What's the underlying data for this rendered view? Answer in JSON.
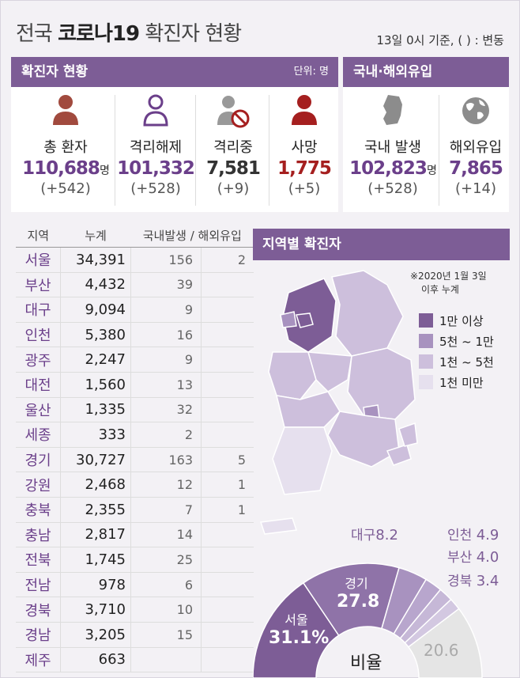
{
  "header": {
    "title_pre": "전국 ",
    "title_bold": "코로나19",
    "title_post": " 확진자 현황",
    "basis": "13일 0시 기준, ( ) : 변동"
  },
  "confirmed_panel": {
    "title": "확진자 현황",
    "unit": "단위: 명"
  },
  "import_panel": {
    "title": "국내·해외유입"
  },
  "stats": [
    {
      "label": "총 환자",
      "value": "110,688",
      "suffix": "명",
      "change": "(+542)",
      "color": "#6b3f8a",
      "icon": "person-icon"
    },
    {
      "label": "격리해제",
      "value": "101,332",
      "suffix": "",
      "change": "(+528)",
      "color": "#6b3f8a",
      "icon": "person-outline-icon"
    },
    {
      "label": "격리중",
      "value": "7,581",
      "suffix": "",
      "change": "(+9)",
      "color": "#333333",
      "icon": "person-blocked-icon"
    },
    {
      "label": "사망",
      "value": "1,775",
      "suffix": "",
      "change": "(+5)",
      "color": "#a51f1f",
      "icon": "person-dark-red-icon"
    },
    {
      "label": "국내 발생",
      "value": "102,823",
      "suffix": "명",
      "change": "(+528)",
      "color": "#6b3f8a",
      "icon": "korea-map-icon"
    },
    {
      "label": "해외유입",
      "value": "7,865",
      "suffix": "",
      "change": "(+14)",
      "color": "#6b3f8a",
      "icon": "globe-icon"
    }
  ],
  "region_table": {
    "headers": [
      "지역",
      "누계",
      "국내발생 / 해외유입"
    ],
    "rows": [
      {
        "region": "서울",
        "total": "34,391",
        "domestic": "156",
        "overseas": "2"
      },
      {
        "region": "부산",
        "total": "4,432",
        "domestic": "39",
        "overseas": ""
      },
      {
        "region": "대구",
        "total": "9,094",
        "domestic": "9",
        "overseas": ""
      },
      {
        "region": "인천",
        "total": "5,380",
        "domestic": "16",
        "overseas": ""
      },
      {
        "region": "광주",
        "total": "2,247",
        "domestic": "9",
        "overseas": ""
      },
      {
        "region": "대전",
        "total": "1,560",
        "domestic": "13",
        "overseas": ""
      },
      {
        "region": "울산",
        "total": "1,335",
        "domestic": "32",
        "overseas": ""
      },
      {
        "region": "세종",
        "total": "333",
        "domestic": "2",
        "overseas": ""
      },
      {
        "region": "경기",
        "total": "30,727",
        "domestic": "163",
        "overseas": "5"
      },
      {
        "region": "강원",
        "total": "2,468",
        "domestic": "12",
        "overseas": "1"
      },
      {
        "region": "충북",
        "total": "2,355",
        "domestic": "7",
        "overseas": "1"
      },
      {
        "region": "충남",
        "total": "2,817",
        "domestic": "14",
        "overseas": ""
      },
      {
        "region": "전북",
        "total": "1,745",
        "domestic": "25",
        "overseas": ""
      },
      {
        "region": "전남",
        "total": "978",
        "domestic": "6",
        "overseas": ""
      },
      {
        "region": "경북",
        "total": "3,710",
        "domestic": "10",
        "overseas": ""
      },
      {
        "region": "경남",
        "total": "3,205",
        "domestic": "15",
        "overseas": ""
      },
      {
        "region": "제주",
        "total": "663",
        "domestic": "",
        "overseas": ""
      }
    ]
  },
  "map_section": {
    "title": "지역별 확진자",
    "note_line1": "※2020년 1월 3일",
    "note_line2": "이후 누계",
    "legend": [
      {
        "label": "1만 이상",
        "color": "#7d5d96"
      },
      {
        "label": "5천 ~ 1만",
        "color": "#a892bf"
      },
      {
        "label": "1천 ~ 5천",
        "color": "#cdbfdc"
      },
      {
        "label": "1천 미만",
        "color": "#e6e0ee"
      }
    ]
  },
  "share_chart": {
    "center_label": "비율",
    "slices": [
      {
        "name": "서울",
        "value": "31.1%"
      },
      {
        "name": "경기",
        "value": "27.8"
      },
      {
        "name": "대구",
        "value": "8.2"
      },
      {
        "name": "인천",
        "value": "4.9"
      },
      {
        "name": "부산",
        "value": "4.0"
      },
      {
        "name": "경북",
        "value": "3.4"
      },
      {
        "name": "",
        "value": "20.6"
      }
    ]
  }
}
